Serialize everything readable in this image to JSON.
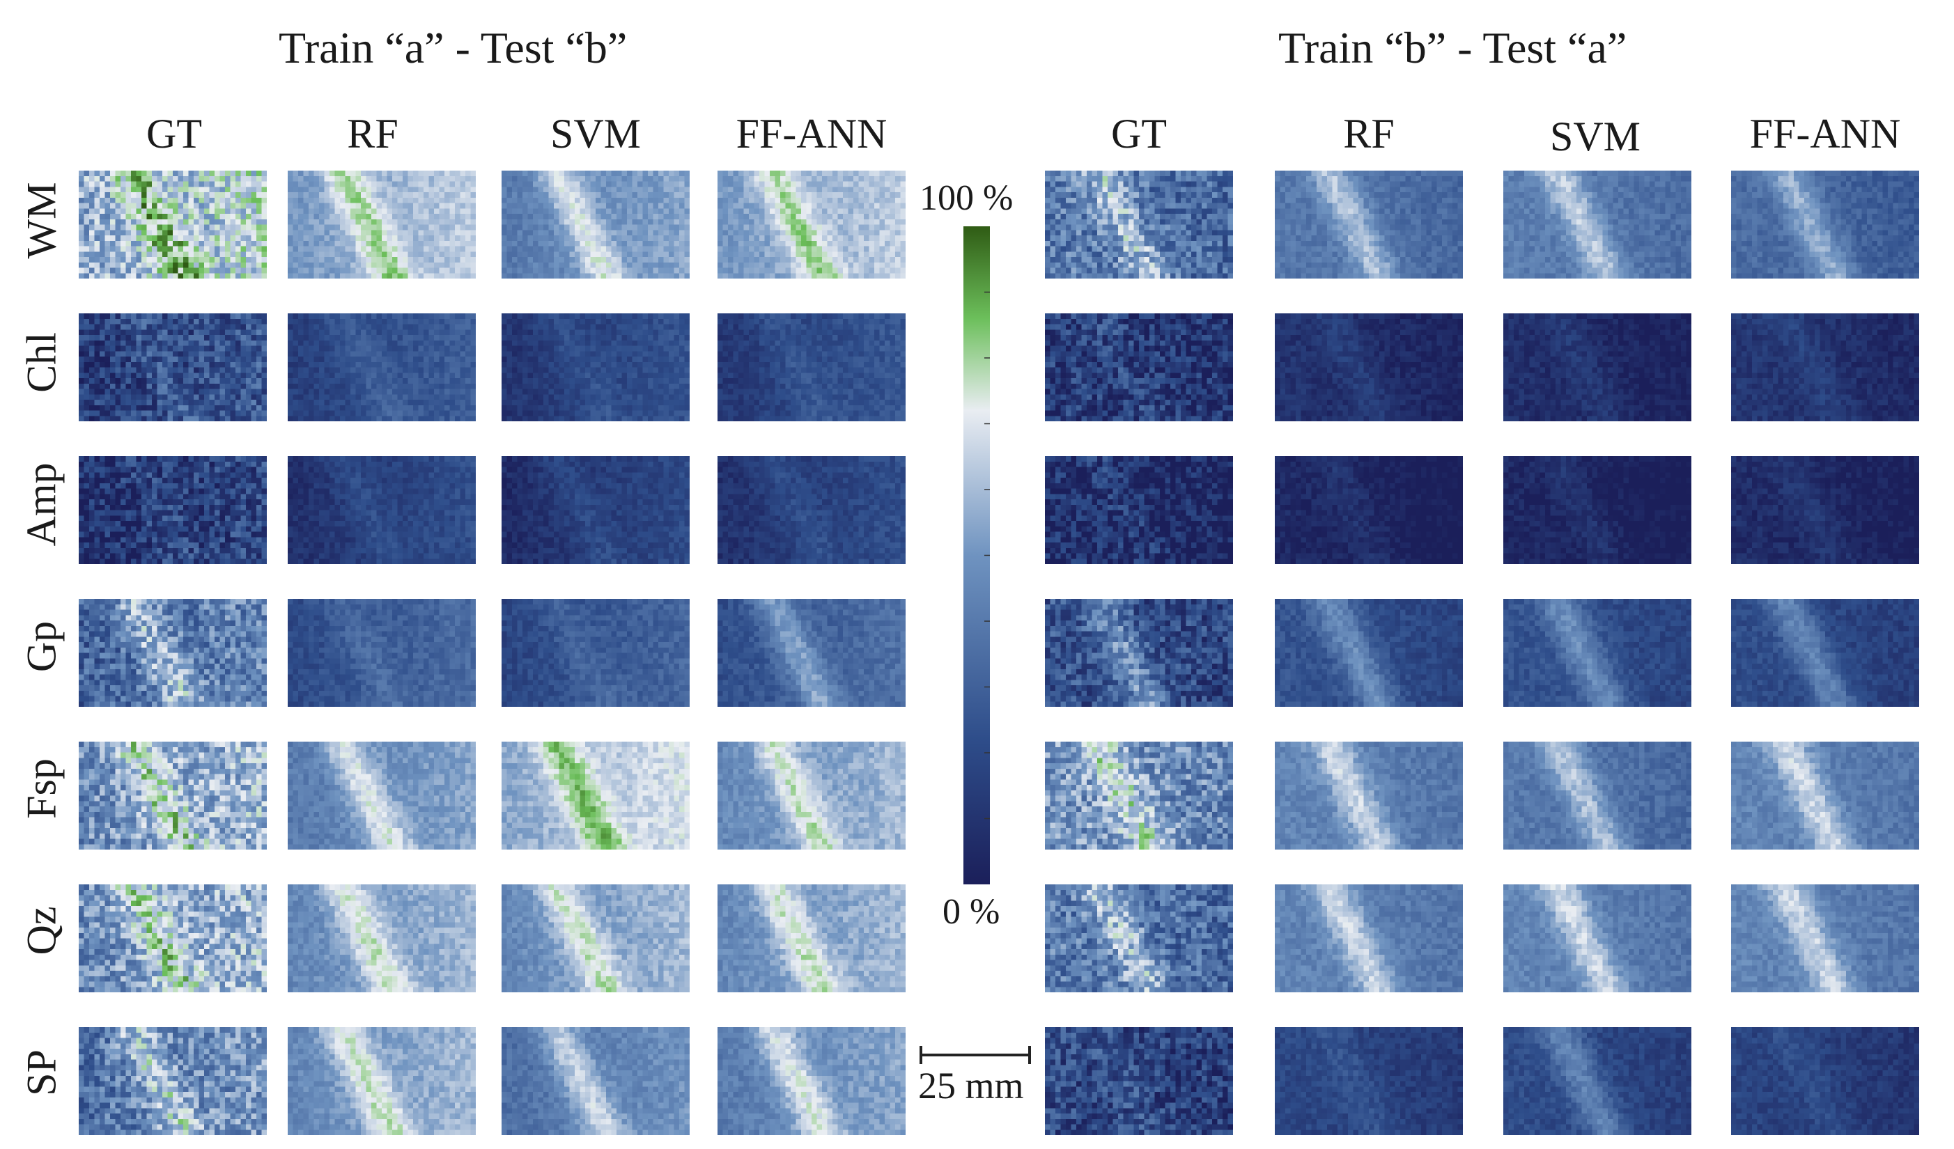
{
  "titles": {
    "left": "Train “a”  - Test “b”",
    "right": "Train “b”  - Test “a”"
  },
  "columns": [
    "GT",
    "RF",
    "SVM",
    "FF-ANN"
  ],
  "rows": [
    "WM",
    "Chl",
    "Amp",
    "Gp",
    "Fsp",
    "Qz",
    "SP"
  ],
  "colorbar": {
    "max_label": "100 %",
    "min_label": "0 %",
    "colors": [
      "#1b1f5a",
      "#2e4d8a",
      "#6f93c0",
      "#e9edf2",
      "#6cbf5b",
      "#2f5b14"
    ]
  },
  "scale_bar": {
    "label": "25 mm"
  },
  "tile_intensity": {
    "left": [
      [
        0.55,
        0.5,
        0.4,
        0.5
      ],
      [
        0.12,
        0.15,
        0.1,
        0.12
      ],
      [
        0.06,
        0.08,
        0.06,
        0.08
      ],
      [
        0.3,
        0.2,
        0.18,
        0.22
      ],
      [
        0.45,
        0.4,
        0.55,
        0.45
      ],
      [
        0.45,
        0.45,
        0.45,
        0.45
      ],
      [
        0.35,
        0.45,
        0.35,
        0.4
      ]
    ],
    "right": [
      [
        0.4,
        0.4,
        0.42,
        0.35
      ],
      [
        0.15,
        0.1,
        0.08,
        0.12
      ],
      [
        0.08,
        0.05,
        0.05,
        0.07
      ],
      [
        0.25,
        0.25,
        0.25,
        0.22
      ],
      [
        0.5,
        0.45,
        0.4,
        0.45
      ],
      [
        0.4,
        0.45,
        0.45,
        0.45
      ],
      [
        0.2,
        0.2,
        0.22,
        0.18
      ]
    ]
  }
}
